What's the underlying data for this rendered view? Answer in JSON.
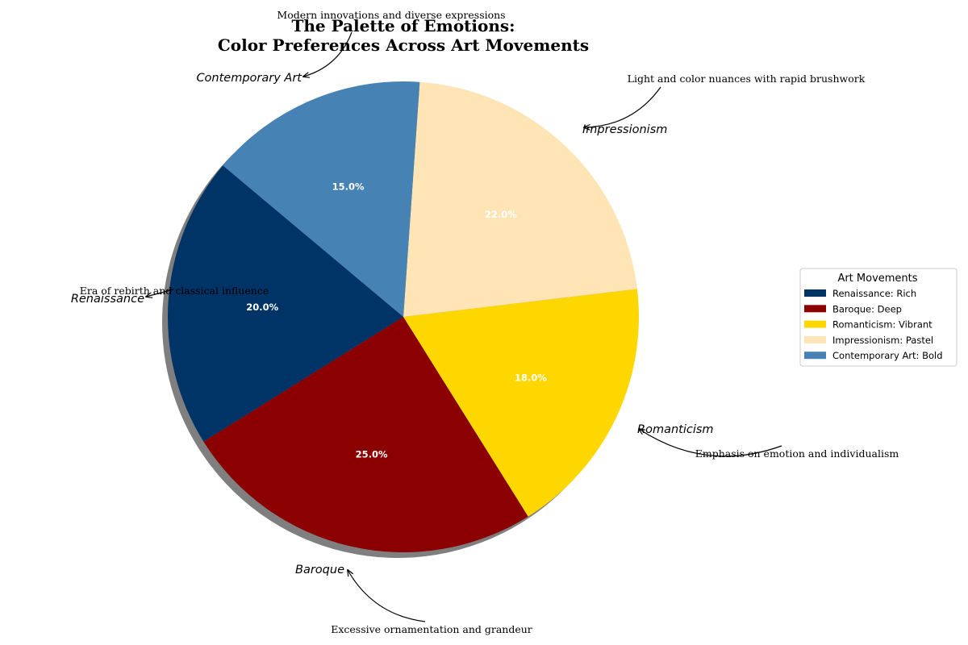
{
  "chart_data": {
    "type": "pie",
    "title_line1": "The Palette of Emotions:",
    "title_line2": "Color Preferences Across Art Movements",
    "categories": [
      "Renaissance",
      "Baroque",
      "Romanticism",
      "Impressionism",
      "Contemporary Art"
    ],
    "values": [
      20.0,
      25.0,
      18.0,
      22.0,
      15.0
    ],
    "percent_labels": [
      "20.0%",
      "25.0%",
      "18.0%",
      "22.0%",
      "15.0%"
    ],
    "colors": [
      "#003366",
      "#8b0000",
      "#ffd700",
      "#ffe4b5",
      "#4682b4"
    ],
    "annotations": [
      "Era of rebirth and classical influence",
      "Excessive ornamentation and grandeur",
      "Emphasis on emotion and individualism",
      "Light and color nuances with rapid brushwork",
      "Modern innovations and diverse expressions"
    ],
    "legend": {
      "title": "Art Movements",
      "placement": "right",
      "entries": [
        "Renaissance: Rich",
        "Baroque: Deep",
        "Romanticism: Vibrant",
        "Impressionism: Pastel",
        "Contemporary Art: Bold"
      ]
    },
    "start_angle_deg": 140,
    "shadow": true,
    "explode": [
      0.02,
      0.02,
      0.02,
      0.02,
      0.02
    ]
  }
}
